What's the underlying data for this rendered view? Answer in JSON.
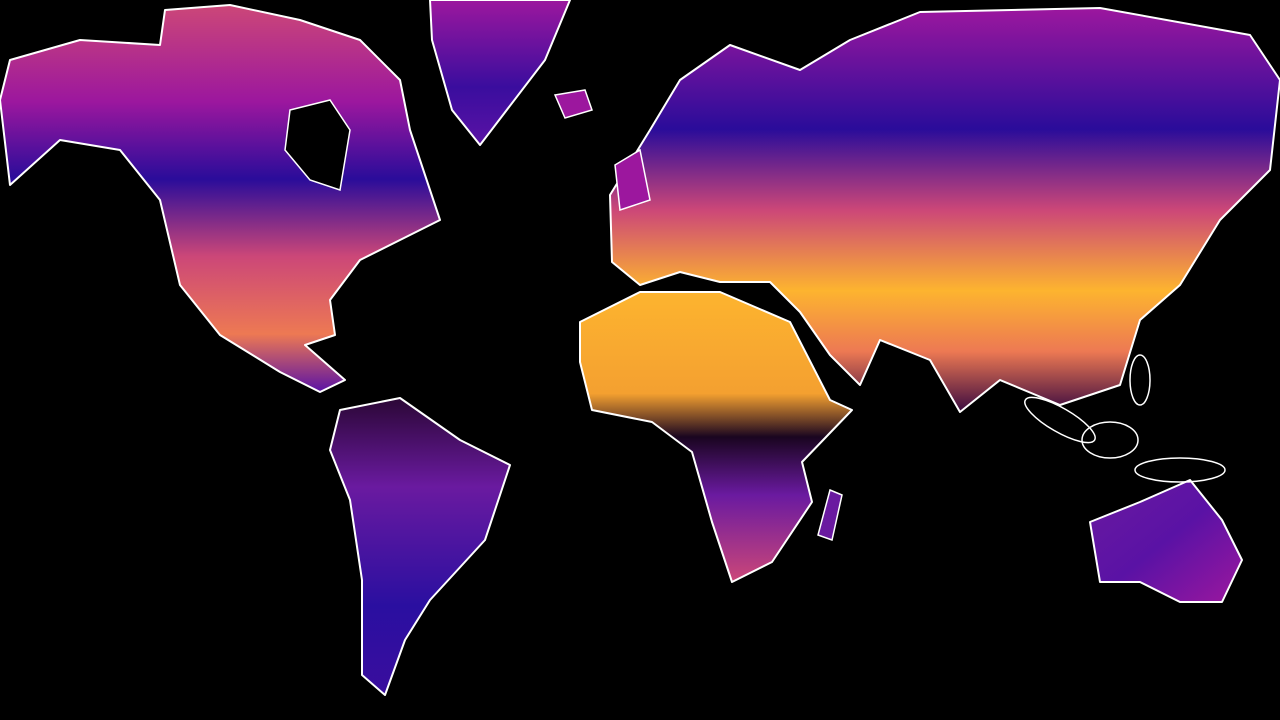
{
  "map": {
    "projection": "mercator",
    "background_color": "#000000",
    "coastline_color": "#ffffff",
    "colormap": "plasma",
    "colormap_stops": [
      "#0d0887",
      "#5a12a5",
      "#9c179e",
      "#cc4778",
      "#ed7953",
      "#fdb42f",
      "#f0f921"
    ],
    "regions": [
      "north-america",
      "greenland",
      "south-america",
      "eurasia",
      "africa",
      "australia",
      "madagascar",
      "maritime-southeast-asia"
    ]
  }
}
